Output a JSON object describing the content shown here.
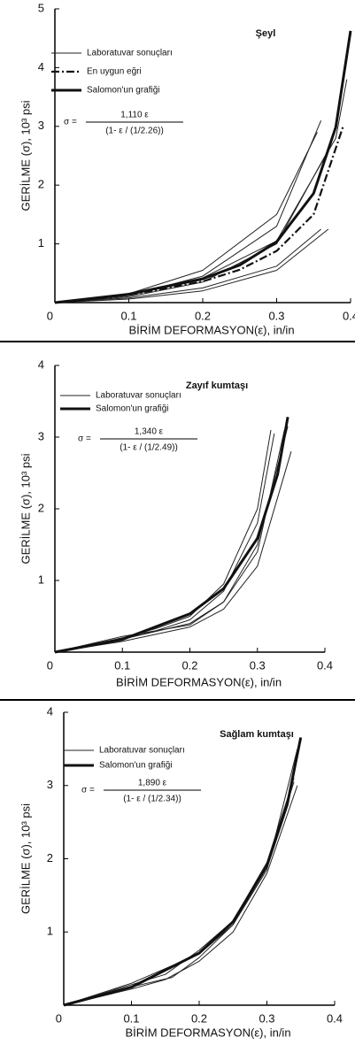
{
  "chart_data": [
    {
      "type": "line",
      "title": "Şeyl",
      "xlabel": "BİRİM DEFORMASYON(ε), in/in",
      "ylabel": "GERİLME (σ), 10³ psi",
      "formula": {
        "lhs": "σ =",
        "numerator": "1,110 ε",
        "denominator": "(1- ε / (1/2.26))"
      },
      "xlim": [
        0,
        0.4
      ],
      "xticks": [
        0,
        0.1,
        0.2,
        0.3,
        0.4
      ],
      "ylim": [
        0,
        5
      ],
      "yticks": [
        1,
        2,
        3,
        4,
        5
      ],
      "series": [
        {
          "name": "Laboratuvar sonuçları",
          "color": "#222",
          "line_style": "thin",
          "curves": [
            {
              "x": [
                0,
                0.1,
                0.2,
                0.3,
                0.36
              ],
              "values": [
                0,
                0.12,
                0.45,
                1.3,
                3.1
              ]
            },
            {
              "x": [
                0,
                0.1,
                0.2,
                0.3,
                0.355
              ],
              "values": [
                0,
                0.15,
                0.55,
                1.5,
                2.9
              ]
            },
            {
              "x": [
                0,
                0.1,
                0.2,
                0.3,
                0.37
              ],
              "values": [
                0,
                0.1,
                0.35,
                1.0,
                2.6
              ]
            },
            {
              "x": [
                0,
                0.1,
                0.2,
                0.3,
                0.36
              ],
              "values": [
                0,
                0.08,
                0.25,
                0.62,
                1.25
              ]
            },
            {
              "x": [
                0,
                0.1,
                0.2,
                0.3,
                0.37
              ],
              "values": [
                0,
                0.06,
                0.2,
                0.55,
                1.25
              ]
            },
            {
              "x": [
                0,
                0.1,
                0.2,
                0.3,
                0.38,
                0.395
              ],
              "values": [
                0,
                0.14,
                0.42,
                1.05,
                2.8,
                3.8
              ]
            }
          ]
        },
        {
          "name": "En uygun eğri",
          "color": "#111",
          "line_style": "dash-dot",
          "x": [
            0,
            0.1,
            0.2,
            0.25,
            0.3,
            0.35,
            0.39
          ],
          "values": [
            0,
            0.13,
            0.36,
            0.56,
            0.88,
            1.5,
            3.0
          ]
        },
        {
          "name": "Salomon'un grafiği",
          "color": "#111",
          "line_style": "thick",
          "x": [
            0,
            0.1,
            0.2,
            0.25,
            0.3,
            0.35,
            0.38,
            0.4
          ],
          "values": [
            0,
            0.143,
            0.405,
            0.638,
            1.034,
            1.859,
            2.987,
            4.625
          ]
        }
      ]
    },
    {
      "type": "line",
      "title": "Zayıf kumtaşı",
      "xlabel": "BİRİM DEFORMASYON(ε), in/in",
      "ylabel": "GERİLME (σ), 10³ psi",
      "formula": {
        "lhs": "σ =",
        "numerator": "1,340 ε",
        "denominator": "(1- ε / (1/2.49))"
      },
      "xlim": [
        0,
        0.4
      ],
      "xticks": [
        0,
        0.1,
        0.2,
        0.3,
        0.4
      ],
      "ylim": [
        0,
        4
      ],
      "yticks": [
        1,
        2,
        3,
        4
      ],
      "series": [
        {
          "name": "Laboratuvar sonuçları",
          "color": "#222",
          "line_style": "thin",
          "curves": [
            {
              "x": [
                0,
                0.1,
                0.15,
                0.2,
                0.25,
                0.3,
                0.32
              ],
              "values": [
                0,
                0.2,
                0.33,
                0.5,
                0.95,
                2.0,
                3.1
              ]
            },
            {
              "x": [
                0,
                0.1,
                0.15,
                0.2,
                0.25,
                0.3,
                0.325
              ],
              "values": [
                0,
                0.22,
                0.3,
                0.45,
                0.85,
                1.8,
                3.05
              ]
            },
            {
              "x": [
                0,
                0.1,
                0.15,
                0.2,
                0.25,
                0.3,
                0.345
              ],
              "values": [
                0,
                0.18,
                0.3,
                0.38,
                0.7,
                1.5,
                3.15
              ]
            },
            {
              "x": [
                0,
                0.1,
                0.2,
                0.25,
                0.3,
                0.35
              ],
              "values": [
                0,
                0.15,
                0.35,
                0.6,
                1.2,
                2.8
              ]
            },
            {
              "x": [
                0,
                0.1,
                0.2,
                0.25,
                0.3,
                0.34
              ],
              "values": [
                0,
                0.18,
                0.4,
                0.7,
                1.4,
                3.1
              ]
            }
          ]
        },
        {
          "name": "Salomon'un grafiği",
          "color": "#111",
          "line_style": "thick",
          "x": [
            0,
            0.1,
            0.2,
            0.25,
            0.3,
            0.33,
            0.345
          ],
          "values": [
            0,
            0.178,
            0.534,
            0.887,
            1.589,
            2.48,
            3.28
          ]
        }
      ]
    },
    {
      "type": "line",
      "title": "Sağlam kumtaşı",
      "xlabel": "BİRİM DEFORMASYON(ε), in/in",
      "ylabel": "GERİLME (σ), 10³ psi",
      "formula": {
        "lhs": "σ =",
        "numerator": "1,890 ε",
        "denominator": "(1- ε / (1/2.34))"
      },
      "xlim": [
        0,
        0.4
      ],
      "xticks": [
        0,
        0.1,
        0.2,
        0.3,
        0.4
      ],
      "ylim": [
        0,
        4
      ],
      "yticks": [
        1,
        2,
        3,
        4
      ],
      "series": [
        {
          "name": "Laboratuvar sonuçları",
          "color": "#222",
          "line_style": "thin",
          "curves": [
            {
              "x": [
                0,
                0.1,
                0.15,
                0.2,
                0.25,
                0.3,
                0.34
              ],
              "values": [
                0,
                0.28,
                0.42,
                0.75,
                1.15,
                1.95,
                3.1
              ]
            },
            {
              "x": [
                0,
                0.1,
                0.15,
                0.2,
                0.25,
                0.3,
                0.345
              ],
              "values": [
                0,
                0.22,
                0.35,
                0.6,
                1.0,
                1.8,
                3.0
              ]
            },
            {
              "x": [
                0,
                0.1,
                0.16,
                0.2,
                0.25,
                0.3,
                0.34
              ],
              "values": [
                0,
                0.25,
                0.38,
                0.65,
                1.1,
                1.9,
                3.05
              ]
            },
            {
              "x": [
                0,
                0.1,
                0.2,
                0.25,
                0.3,
                0.345
              ],
              "values": [
                0,
                0.3,
                0.7,
                1.1,
                1.85,
                3.5
              ]
            }
          ]
        },
        {
          "name": "Salomon'un grafiği",
          "color": "#111",
          "line_style": "thick",
          "x": [
            0,
            0.1,
            0.2,
            0.25,
            0.3,
            0.33,
            0.35
          ],
          "values": [
            0,
            0.247,
            0.711,
            1.139,
            1.903,
            2.738,
            3.655
          ]
        }
      ]
    }
  ]
}
